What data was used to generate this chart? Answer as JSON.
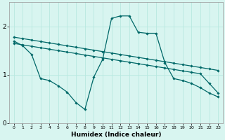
{
  "xlabel": "Humidex (Indice chaleur)",
  "bg_color": "#d8f5f0",
  "grid_color": "#b8e8e0",
  "line_color": "#006868",
  "xlim": [
    -0.5,
    23.5
  ],
  "ylim": [
    0,
    2.5
  ],
  "yticks": [
    0,
    1,
    2
  ],
  "xticks": [
    0,
    1,
    2,
    3,
    4,
    5,
    6,
    7,
    8,
    9,
    10,
    11,
    12,
    13,
    14,
    15,
    16,
    17,
    18,
    19,
    20,
    21,
    22,
    23
  ],
  "upper_line_x": [
    0,
    1,
    2,
    3,
    4,
    5,
    6,
    7,
    8,
    9,
    10,
    11,
    12,
    13,
    14,
    15,
    16,
    17,
    18,
    19,
    20,
    21,
    22,
    23
  ],
  "upper_line_y": [
    1.78,
    1.75,
    1.72,
    1.69,
    1.66,
    1.63,
    1.6,
    1.57,
    1.54,
    1.51,
    1.48,
    1.45,
    1.42,
    1.39,
    1.36,
    1.33,
    1.3,
    1.27,
    1.24,
    1.21,
    1.18,
    1.15,
    1.12,
    1.09
  ],
  "lower_line_x": [
    0,
    1,
    2,
    3,
    4,
    5,
    6,
    7,
    8,
    9,
    10,
    11,
    12,
    13,
    14,
    15,
    16,
    17,
    18,
    19,
    20,
    21,
    22,
    23
  ],
  "lower_line_y": [
    1.65,
    1.62,
    1.59,
    1.56,
    1.53,
    1.5,
    1.47,
    1.44,
    1.41,
    1.38,
    1.35,
    1.32,
    1.29,
    1.26,
    1.23,
    1.2,
    1.17,
    1.14,
    1.11,
    1.08,
    1.05,
    1.02,
    0.82,
    0.62
  ],
  "wavy_line_x": [
    0,
    1,
    2,
    3,
    4,
    5,
    6,
    7,
    8,
    9,
    10,
    11,
    12,
    13,
    14,
    15,
    16,
    17,
    18,
    19,
    20,
    21,
    22,
    23
  ],
  "wavy_line_y": [
    1.7,
    1.6,
    1.42,
    0.92,
    0.88,
    0.77,
    0.64,
    0.42,
    0.28,
    0.95,
    1.32,
    2.17,
    2.22,
    2.22,
    1.88,
    1.86,
    1.86,
    1.25,
    0.92,
    0.88,
    0.82,
    0.73,
    0.62,
    0.54
  ]
}
